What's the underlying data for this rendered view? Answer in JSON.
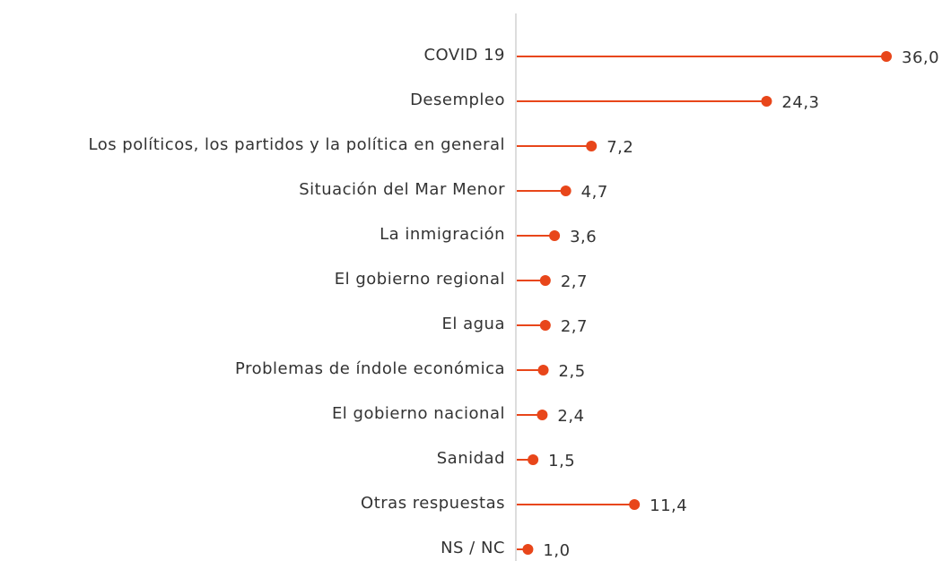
{
  "chart_data": {
    "type": "lollipop",
    "orientation": "horizontal",
    "categories": [
      "COVID 19",
      "Desempleo",
      "Los políticos, los partidos y la política en general",
      "Situación del Mar Menor",
      "La inmigración",
      "El gobierno regional",
      "El agua",
      "Problemas de índole económica",
      "El gobierno nacional",
      "Sanidad",
      "Otras respuestas",
      "NS / NC"
    ],
    "values": [
      36.0,
      24.3,
      7.2,
      4.7,
      3.6,
      2.7,
      2.7,
      2.5,
      2.4,
      1.5,
      11.4,
      1.0
    ],
    "value_labels": [
      "36,0",
      "24,3",
      "7,2",
      "4,7",
      "3,6",
      "2,7",
      "2,7",
      "2,5",
      "2,4",
      "1,5",
      "11,4",
      "1,0"
    ],
    "color": "#e8461a",
    "xlim": [
      0,
      36
    ]
  }
}
